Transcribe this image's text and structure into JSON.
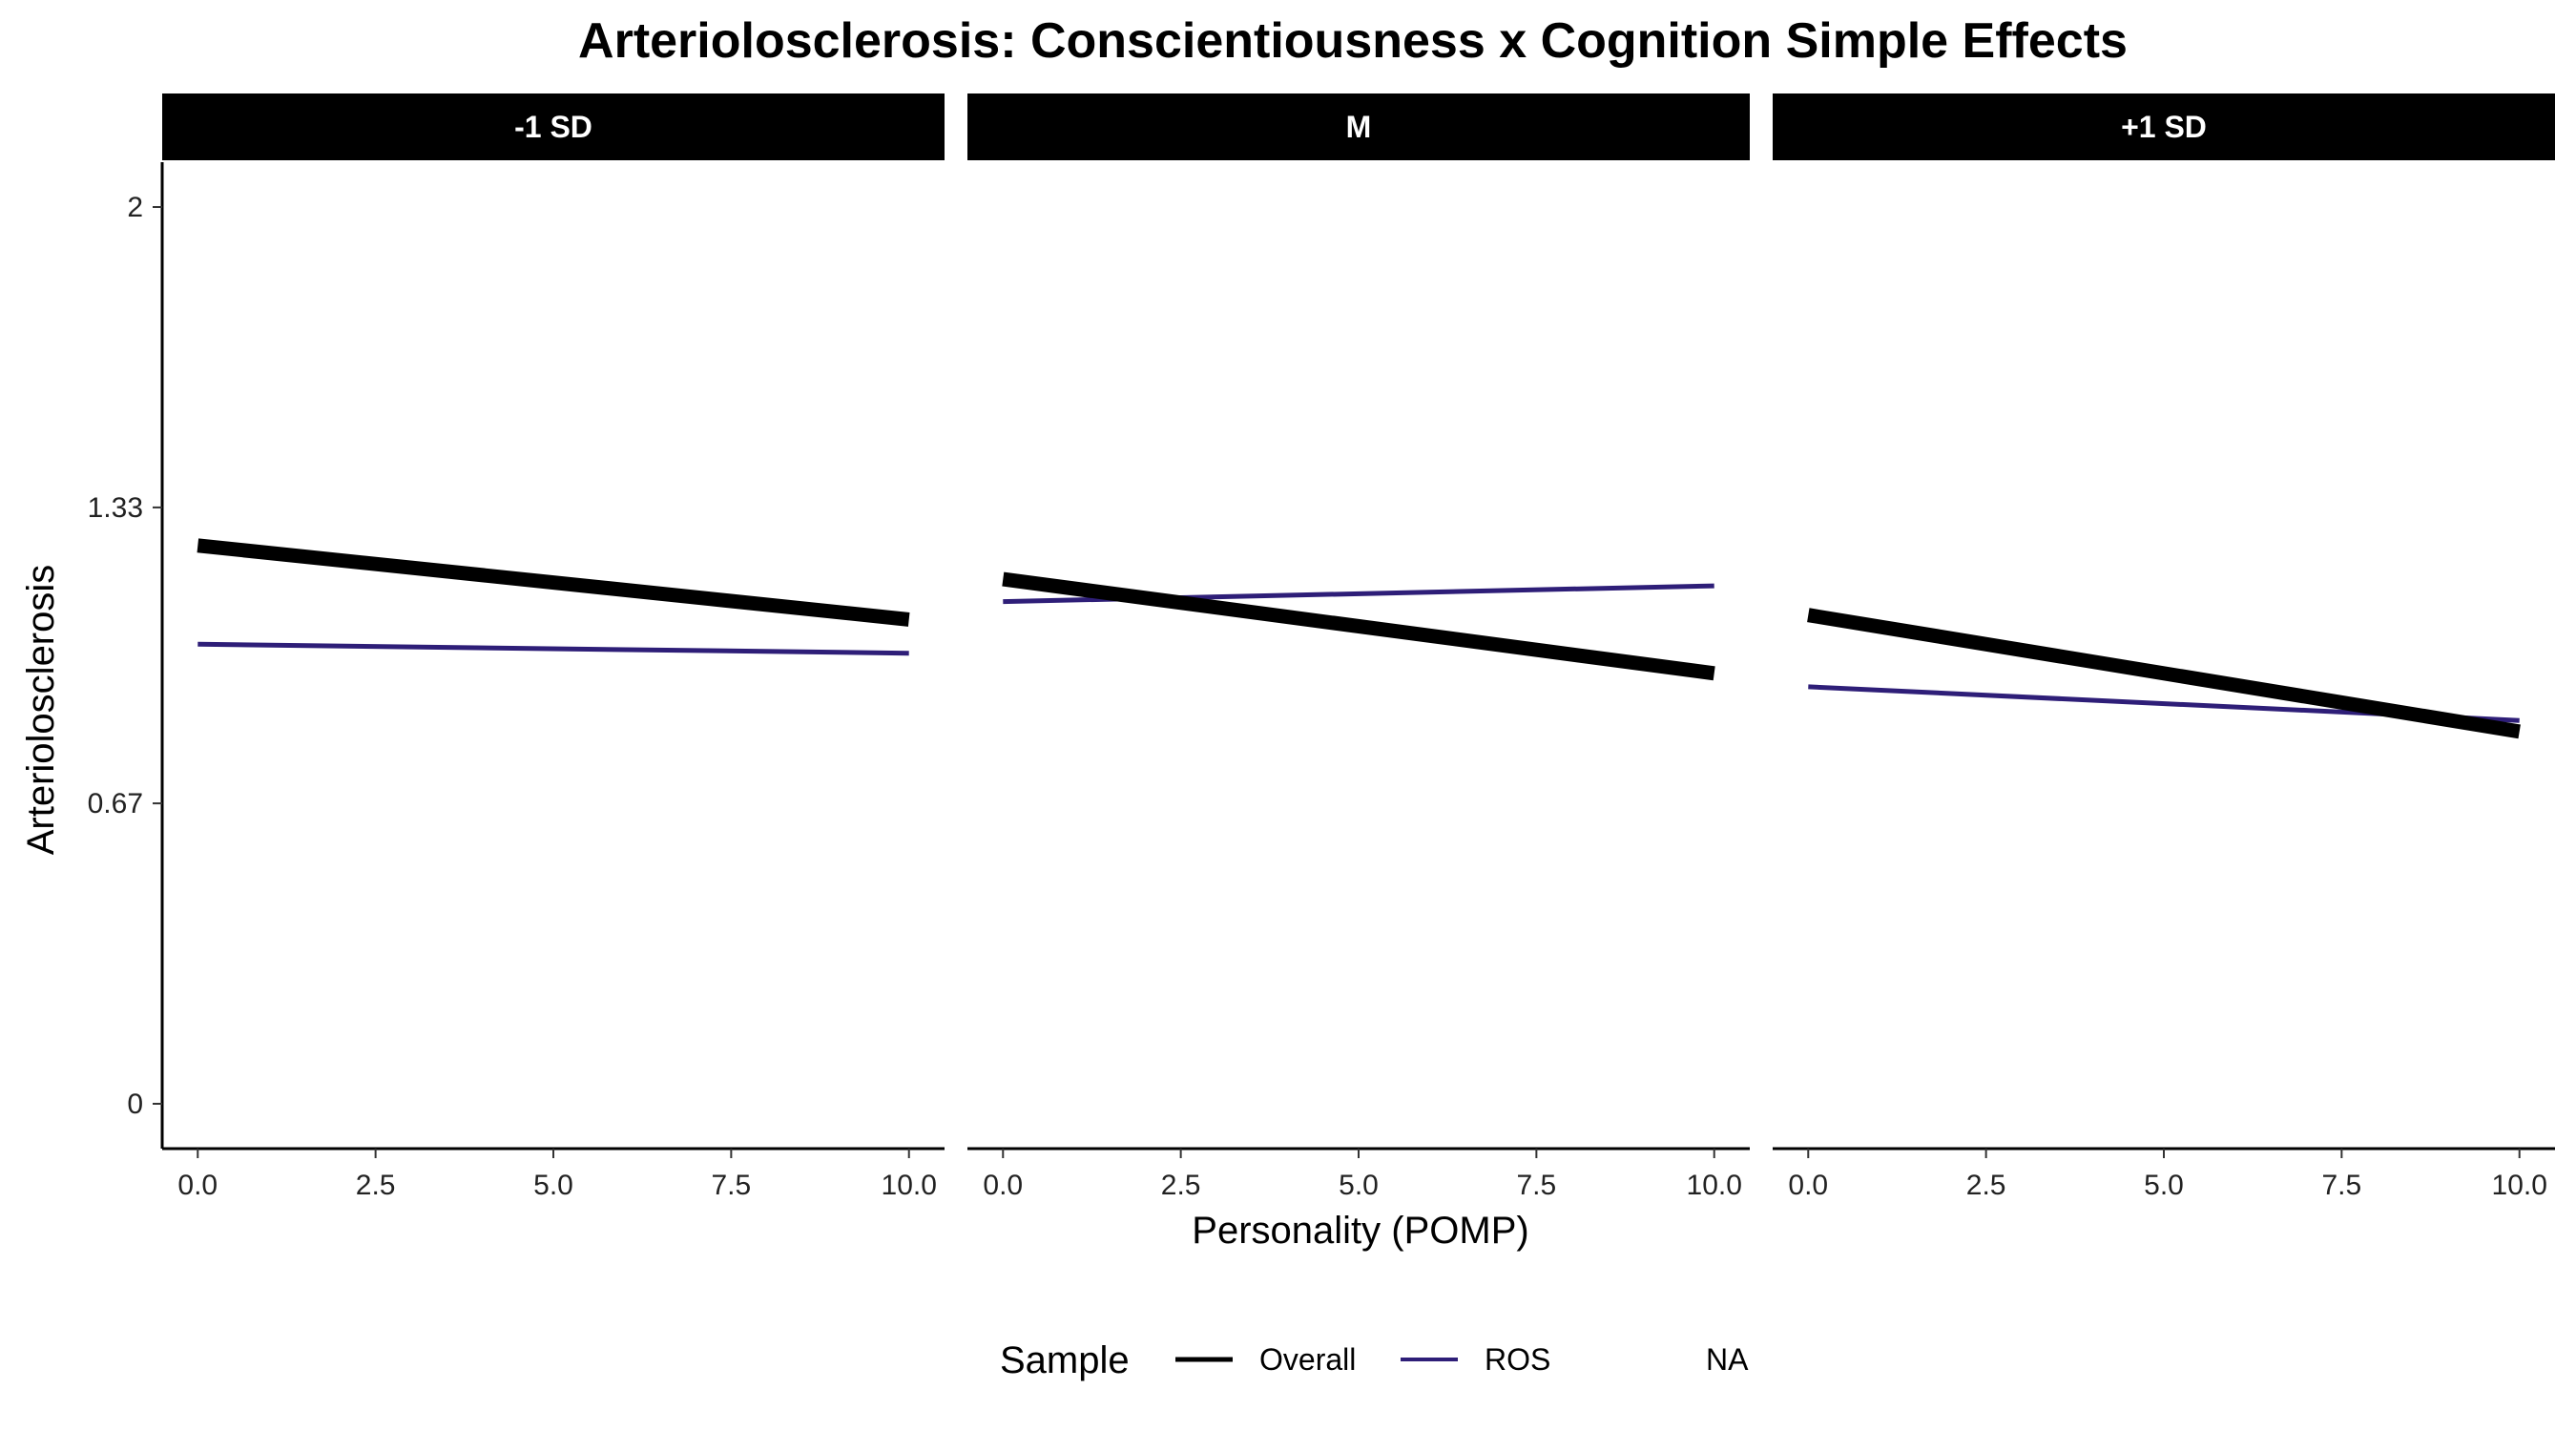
{
  "chart_data": {
    "type": "line",
    "title": "Arteriolosclerosis: Conscientiousness x Cognition Simple Effects",
    "xlabel": "Personality (POMP)",
    "ylabel": "Arteriolosclerosis",
    "xlim": [
      -0.5,
      10.5
    ],
    "ylim": [
      -0.1,
      2.1
    ],
    "x_ticks": [
      0,
      2.5,
      5,
      7.5,
      10
    ],
    "x_tick_labels": [
      "0.0",
      "2.5",
      "5.0",
      "7.5",
      "10.0"
    ],
    "y_ticks": [
      0,
      0.67,
      1.33,
      2
    ],
    "y_tick_labels": [
      "0",
      "0.67",
      "1.33",
      "2"
    ],
    "grid": false,
    "legend": {
      "title": "Sample",
      "position": "bottom",
      "entries": [
        {
          "label": "Overall",
          "color": "#000000"
        },
        {
          "label": "ROS",
          "color": "#2E1E78"
        },
        {
          "label": "NA",
          "color": "none"
        }
      ]
    },
    "panels": [
      {
        "label": "-1 SD",
        "series": [
          {
            "name": "Overall",
            "color": "#000000",
            "x": [
              0,
              10
            ],
            "y": [
              1.245,
              1.08
            ]
          },
          {
            "name": "ROS",
            "color": "#2E1E78",
            "x": [
              0,
              10
            ],
            "y": [
              1.025,
              1.005
            ]
          }
        ]
      },
      {
        "label": "M",
        "series": [
          {
            "name": "Overall",
            "color": "#000000",
            "x": [
              0,
              10
            ],
            "y": [
              1.17,
              0.96
            ]
          },
          {
            "name": "ROS",
            "color": "#2E1E78",
            "x": [
              0,
              10
            ],
            "y": [
              1.12,
              1.155
            ]
          }
        ]
      },
      {
        "label": "+1 SD",
        "series": [
          {
            "name": "Overall",
            "color": "#000000",
            "x": [
              0,
              10
            ],
            "y": [
              1.09,
              0.83
            ]
          },
          {
            "name": "ROS",
            "color": "#2E1E78",
            "x": [
              0,
              10
            ],
            "y": [
              0.93,
              0.855
            ]
          }
        ]
      }
    ]
  }
}
